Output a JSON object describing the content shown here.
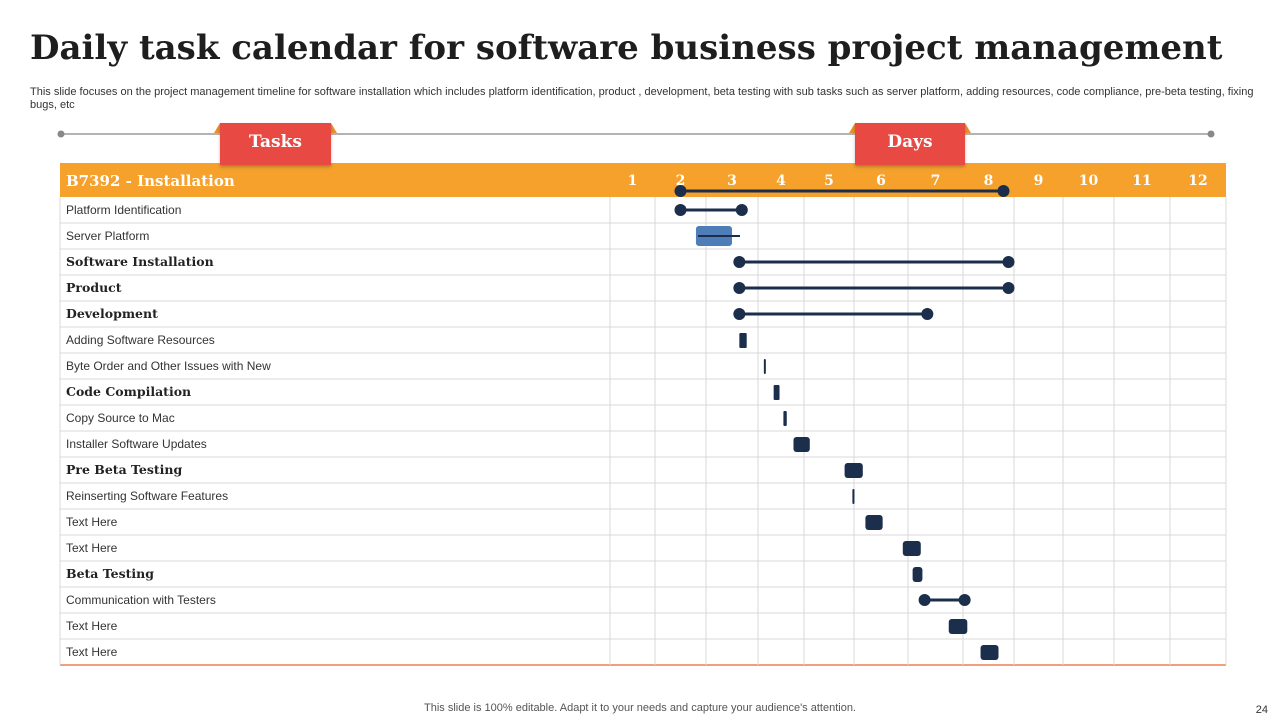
{
  "slide": {
    "title": "Daily task calendar for software business project management",
    "subtitle": "This slide focuses on the project management timeline for software installation which includes platform identification, product , development, beta testing with sub tasks such as server platform, adding resources, code compliance, pre-beta testing, fixing bugs, etc",
    "tasks_tab": "Tasks",
    "days_tab": "Days",
    "footer": "This slide is 100% editable. Adapt it to your needs and capture your audience's attention.",
    "page_number": "24"
  },
  "colors": {
    "header_bg": "#f5a12c",
    "header_text": "#ffffff",
    "tab_bg": "#e84a43",
    "bar": "#1b2e4b",
    "bar_highlight": "#4f7db8",
    "grid": "#d8d8d8",
    "bottom_rule": "#f0a07a"
  },
  "chart_data": {
    "type": "gantt",
    "header_label": "B7392 - Installation",
    "days": [
      "1",
      "2",
      "3",
      "4",
      "5",
      "6",
      "7",
      "8",
      "9",
      "10",
      "11",
      "12"
    ],
    "header_span": {
      "start": 2.0,
      "end": 8.3
    },
    "tasks": [
      {
        "name": "Platform Identification",
        "bold": false,
        "start": 2.0,
        "end": 3.2,
        "style": "line"
      },
      {
        "name": "Server Platform",
        "bold": false,
        "start": 2.3,
        "end": 3.0,
        "style": "highlight"
      },
      {
        "name": "Software Installation",
        "bold": true,
        "start": 3.15,
        "end": 8.4,
        "style": "line"
      },
      {
        "name": "Product",
        "bold": true,
        "start": 3.15,
        "end": 8.4,
        "style": "line"
      },
      {
        "name": "Development",
        "bold": true,
        "start": 3.15,
        "end": 6.85,
        "style": "line"
      },
      {
        "name": "Adding Software Resources",
        "bold": false,
        "start": 3.15,
        "end": 3.3,
        "style": "block"
      },
      {
        "name": "Byte Order  and Other Issues with New",
        "bold": false,
        "start": 3.65,
        "end": 3.69,
        "style": "block"
      },
      {
        "name": "Code Compilation",
        "bold": true,
        "start": 3.85,
        "end": 3.97,
        "style": "block"
      },
      {
        "name": "Copy Source to Mac",
        "bold": false,
        "start": 4.05,
        "end": 4.12,
        "style": "block"
      },
      {
        "name": "Installer Software Updates",
        "bold": false,
        "start": 4.26,
        "end": 4.6,
        "style": "block"
      },
      {
        "name": "Pre Beta Testing",
        "bold": true,
        "start": 5.3,
        "end": 5.65,
        "style": "block"
      },
      {
        "name": "Reinserting Software Features",
        "bold": false,
        "start": 5.45,
        "end": 5.49,
        "style": "block"
      },
      {
        "name": "Text Here",
        "bold": false,
        "start": 5.7,
        "end": 6.03,
        "style": "block"
      },
      {
        "name": "Text Here",
        "bold": false,
        "start": 6.4,
        "end": 6.73,
        "style": "block"
      },
      {
        "name": "Beta Testing",
        "bold": true,
        "start": 6.58,
        "end": 6.76,
        "style": "block"
      },
      {
        "name": "Communication with Testers",
        "bold": false,
        "start": 6.8,
        "end": 7.55,
        "style": "line"
      },
      {
        "name": "Text Here",
        "bold": false,
        "start": 7.25,
        "end": 7.6,
        "style": "block"
      },
      {
        "name": "Text Here",
        "bold": false,
        "start": 7.85,
        "end": 8.2,
        "style": "block"
      }
    ]
  }
}
